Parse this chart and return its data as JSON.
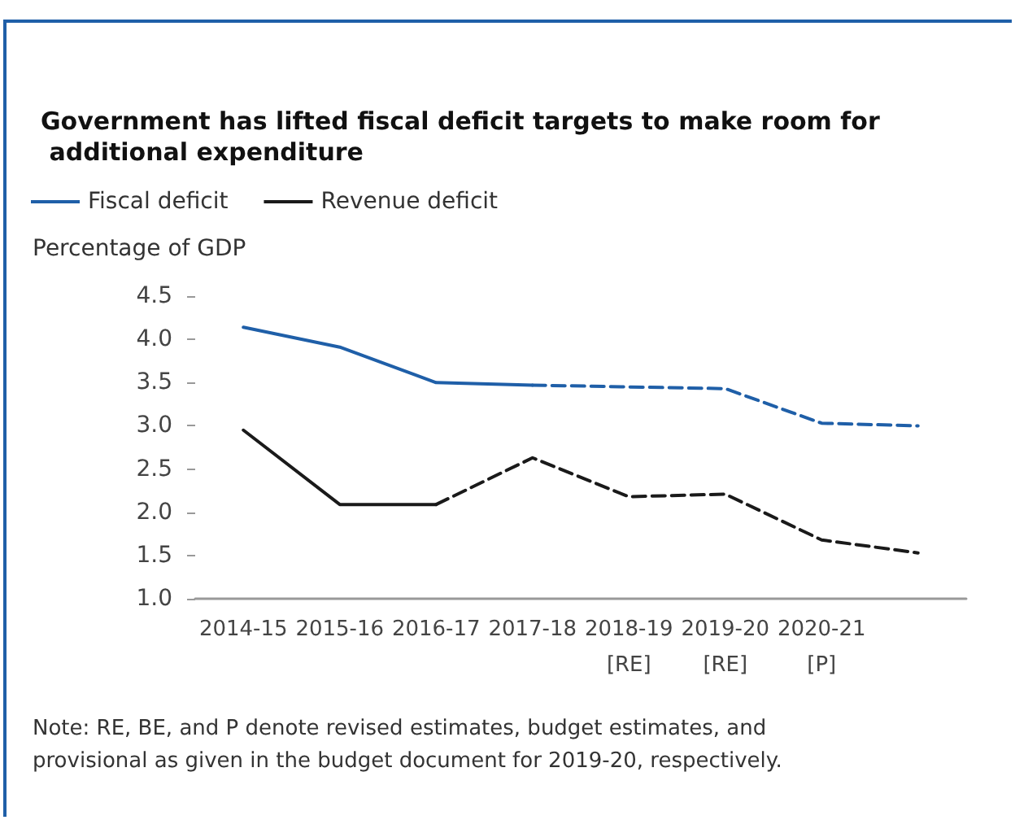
{
  "chart_data": {
    "type": "line",
    "title": "Government has lifted fiscal deficit targets to make room for additional expenditure",
    "ylabel": "Percentage of GDP",
    "categories": [
      "2014-15",
      "2015-16",
      "2016-17",
      "2017-18",
      "2018-19\n[RE]",
      "2019-20\n[RE]",
      "2020-21\n[P]",
      null
    ],
    "series": [
      {
        "name": "Fiscal deficit",
        "color": "#1f5fa8",
        "line_style": "solid",
        "values": [
          4.14,
          3.91,
          3.5,
          3.47,
          null,
          null,
          null,
          null
        ]
      },
      {
        "color": "#1f5fa8",
        "line_style": "dashed",
        "values": [
          null,
          null,
          null,
          3.47,
          3.45,
          3.43,
          3.03,
          3.0
        ]
      },
      {
        "name": "Revenue deficit",
        "color": "#1a1a1a",
        "line_style": "solid",
        "values": [
          2.95,
          2.09,
          2.09,
          null,
          null,
          null,
          null,
          null
        ]
      },
      {
        "color": "#1a1a1a",
        "line_style": "dashed",
        "values": [
          null,
          null,
          2.09,
          2.63,
          2.18,
          2.21,
          1.68,
          1.53
        ]
      }
    ],
    "ylim": [
      1,
      4.5
    ],
    "yticks": [
      {
        "value": 1,
        "label": "1.0"
      },
      {
        "value": 1.5,
        "label": "1.5"
      },
      {
        "value": 2,
        "label": "2.0"
      },
      {
        "value": 2.5,
        "label": "2.5"
      },
      {
        "value": 3,
        "label": "3.0"
      },
      {
        "value": 3.5,
        "label": "3.5"
      },
      {
        "value": 4,
        "label": "4.0"
      },
      {
        "value": 4.5,
        "label": "4.5"
      }
    ],
    "grid": false,
    "legend": "top left",
    "marker": "none",
    "annotations": [
      "Note: RE, BE, and P denote revised estimates, budget estimates, and provisional as given in the budget document for 2019-20, respectively."
    ]
  }
}
